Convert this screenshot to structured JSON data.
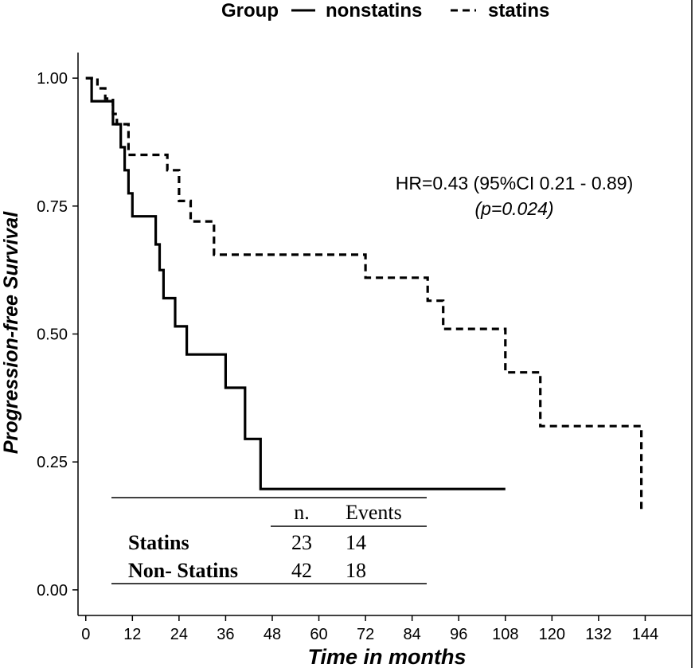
{
  "chart_data": {
    "type": "line",
    "subtype": "kaplan-meier step",
    "legend": {
      "title": "Group",
      "position": "top",
      "entries": [
        {
          "label": "nonstatins",
          "style": "solid"
        },
        {
          "label": "statins",
          "style": "dashed"
        }
      ]
    },
    "xlabel": "Time in months",
    "ylabel": "Progression-free Survival",
    "xlim": [
      -2,
      156
    ],
    "ylim": [
      -0.05,
      1.05
    ],
    "xticks": [
      0,
      12,
      24,
      36,
      48,
      60,
      72,
      84,
      96,
      108,
      120,
      132,
      144
    ],
    "xtick_labels": [
      "0",
      "12",
      "24",
      "36",
      "48",
      "60",
      "72",
      "84",
      "96",
      "108",
      "120",
      "132",
      "144"
    ],
    "yticks": [
      0,
      0.25,
      0.5,
      0.75,
      1.0
    ],
    "ytick_labels": [
      "0.00",
      "0.25",
      "0.50",
      "0.75",
      "1.00"
    ],
    "grid": false,
    "annotation": {
      "hr_text": "HR=0.43 (95%CI 0.21 - 0.89)",
      "p_text": "(p=0.024)"
    },
    "series": [
      {
        "name": "nonstatins",
        "style": "solid",
        "points": [
          [
            0,
            1.0
          ],
          [
            1.5,
            1.0
          ],
          [
            1.5,
            0.955
          ],
          [
            7,
            0.955
          ],
          [
            7,
            0.91
          ],
          [
            9,
            0.91
          ],
          [
            9,
            0.865
          ],
          [
            10,
            0.865
          ],
          [
            10,
            0.82
          ],
          [
            11,
            0.82
          ],
          [
            11,
            0.775
          ],
          [
            12,
            0.775
          ],
          [
            12,
            0.73
          ],
          [
            18,
            0.73
          ],
          [
            18,
            0.675
          ],
          [
            19,
            0.675
          ],
          [
            19,
            0.625
          ],
          [
            20,
            0.625
          ],
          [
            20,
            0.57
          ],
          [
            23,
            0.57
          ],
          [
            23,
            0.515
          ],
          [
            26,
            0.515
          ],
          [
            26,
            0.46
          ],
          [
            36,
            0.46
          ],
          [
            36,
            0.395
          ],
          [
            41,
            0.395
          ],
          [
            41,
            0.295
          ],
          [
            45,
            0.295
          ],
          [
            45,
            0.197
          ],
          [
            108,
            0.197
          ]
        ]
      },
      {
        "name": "statins",
        "style": "dashed",
        "points": [
          [
            0,
            1.0
          ],
          [
            3,
            1.0
          ],
          [
            3,
            0.98
          ],
          [
            5,
            0.98
          ],
          [
            5,
            0.96
          ],
          [
            7,
            0.96
          ],
          [
            7,
            0.93
          ],
          [
            8,
            0.93
          ],
          [
            8,
            0.91
          ],
          [
            11,
            0.91
          ],
          [
            11,
            0.85
          ],
          [
            21,
            0.85
          ],
          [
            21,
            0.82
          ],
          [
            24,
            0.82
          ],
          [
            24,
            0.76
          ],
          [
            27,
            0.76
          ],
          [
            27,
            0.72
          ],
          [
            33,
            0.72
          ],
          [
            33,
            0.655
          ],
          [
            72,
            0.655
          ],
          [
            72,
            0.61
          ],
          [
            88,
            0.61
          ],
          [
            88,
            0.565
          ],
          [
            92,
            0.565
          ],
          [
            92,
            0.51
          ],
          [
            108,
            0.51
          ],
          [
            108,
            0.425
          ],
          [
            117,
            0.425
          ],
          [
            117,
            0.32
          ],
          [
            143,
            0.32
          ],
          [
            143,
            0.155
          ]
        ]
      }
    ],
    "table": {
      "columns": [
        "",
        "n.",
        "Events"
      ],
      "rows": [
        {
          "group": "Statins",
          "n": "23",
          "events": "14"
        },
        {
          "group": "Non- Statins",
          "n": "42",
          "events": "18"
        }
      ]
    }
  }
}
